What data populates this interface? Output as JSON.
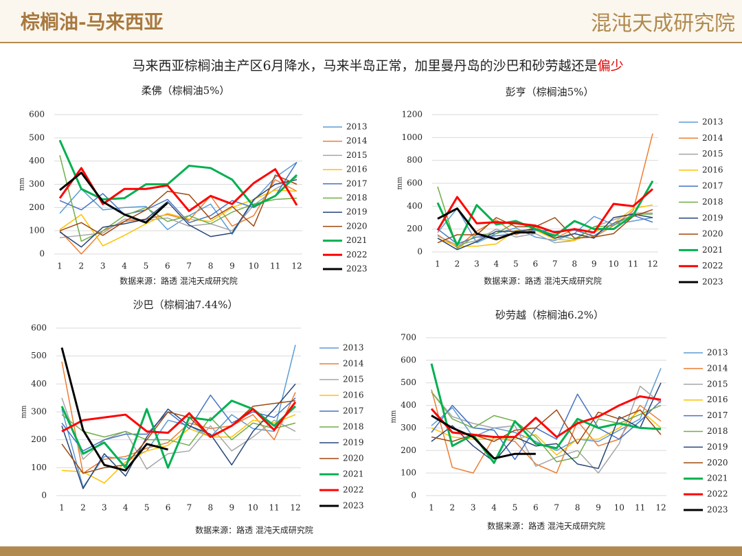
{
  "header": {
    "title": "棕榈油-马来西亚",
    "logo": "混沌天成研究院",
    "subtitle": "马来西亚棕榈油主产区6月降水，马来半岛正常，加里曼丹岛的沙巴和砂劳越还是",
    "subtitle_highlight": "偏少"
  },
  "chart_data": [
    {
      "type": "line",
      "title": "柔佛（棕榈油5%）",
      "ylabel": "mm",
      "source": "数据来源：路透 混沌天成研究院",
      "categories": [
        1,
        2,
        3,
        4,
        5,
        6,
        7,
        8,
        9,
        10,
        11,
        12
      ],
      "ylim": [
        0,
        600
      ],
      "yticks": [
        0,
        100,
        200,
        300,
        400,
        500,
        600
      ],
      "grid": true,
      "series": [
        {
          "name": "2013",
          "color": "#5b9bd5",
          "linewidth": 1.5,
          "values": [
            175,
            280,
            190,
            200,
            205,
            105,
            165,
            215,
            85,
            230,
            330,
            395
          ]
        },
        {
          "name": "2014",
          "color": "#ed7d31",
          "linewidth": 1.5,
          "values": [
            100,
            0,
            100,
            140,
            150,
            170,
            145,
            250,
            120,
            165,
            320,
            270
          ]
        },
        {
          "name": "2015",
          "color": "#a5a5a5",
          "linewidth": 1.5,
          "values": [
            70,
            80,
            90,
            150,
            145,
            155,
            120,
            130,
            100,
            210,
            280,
            330
          ]
        },
        {
          "name": "2016",
          "color": "#ffc000",
          "linewidth": 1.5,
          "values": [
            105,
            170,
            35,
            80,
            130,
            175,
            150,
            140,
            200,
            235,
            275,
            270
          ]
        },
        {
          "name": "2017",
          "color": "#4472c4",
          "linewidth": 1.5,
          "values": [
            230,
            190,
            260,
            170,
            190,
            235,
            135,
            165,
            230,
            200,
            250,
            395
          ]
        },
        {
          "name": "2018",
          "color": "#70ad47",
          "linewidth": 1.5,
          "values": [
            425,
            55,
            100,
            165,
            200,
            140,
            165,
            130,
            180,
            215,
            235,
            240
          ]
        },
        {
          "name": "2019",
          "color": "#264478",
          "linewidth": 1.5,
          "values": [
            95,
            30,
            115,
            130,
            150,
            225,
            125,
            75,
            90,
            235,
            300,
            320
          ]
        },
        {
          "name": "2020",
          "color": "#9e480e",
          "linewidth": 1.5,
          "values": [
            100,
            135,
            80,
            140,
            190,
            270,
            255,
            150,
            205,
            120,
            340,
            300
          ]
        },
        {
          "name": "2021",
          "color": "#00b050",
          "linewidth": 3,
          "values": [
            490,
            280,
            235,
            240,
            300,
            300,
            380,
            370,
            320,
            205,
            250,
            340
          ]
        },
        {
          "name": "2022",
          "color": "#ff0000",
          "linewidth": 3,
          "values": [
            240,
            370,
            215,
            280,
            280,
            295,
            185,
            250,
            215,
            305,
            365,
            210
          ]
        },
        {
          "name": "2023",
          "color": "#000000",
          "linewidth": 3,
          "values": [
            275,
            350,
            225,
            170,
            135,
            220,
            null,
            null,
            null,
            null,
            null,
            null
          ]
        }
      ]
    },
    {
      "type": "line",
      "title": "彭亨（棕榈油5%）",
      "ylabel": "mm",
      "source": "数据来源：路透 混沌天成研究院",
      "categories": [
        1,
        2,
        3,
        4,
        5,
        6,
        7,
        8,
        9,
        10,
        11,
        12
      ],
      "ylim": [
        0,
        1200
      ],
      "yticks": [
        0,
        200,
        400,
        600,
        800,
        1000,
        1200
      ],
      "grid": true,
      "series": [
        {
          "name": "2013",
          "color": "#5b9bd5",
          "linewidth": 1.5,
          "values": [
            170,
            380,
            80,
            160,
            210,
            130,
            100,
            160,
            310,
            240,
            270,
            300
          ]
        },
        {
          "name": "2014",
          "color": "#ed7d31",
          "linewidth": 1.5,
          "values": [
            150,
            40,
            180,
            280,
            150,
            220,
            120,
            200,
            130,
            230,
            360,
            1035
          ]
        },
        {
          "name": "2015",
          "color": "#a5a5a5",
          "linewidth": 1.5,
          "values": [
            140,
            60,
            100,
            200,
            130,
            160,
            80,
            100,
            220,
            280,
            340,
            340
          ]
        },
        {
          "name": "2016",
          "color": "#ffc000",
          "linewidth": 1.5,
          "values": [
            120,
            50,
            50,
            70,
            190,
            190,
            110,
            100,
            170,
            250,
            380,
            410
          ]
        },
        {
          "name": "2017",
          "color": "#4472c4",
          "linewidth": 1.5,
          "values": [
            200,
            70,
            130,
            140,
            160,
            190,
            180,
            190,
            140,
            250,
            320,
            260
          ]
        },
        {
          "name": "2018",
          "color": "#70ad47",
          "linewidth": 1.5,
          "values": [
            570,
            30,
            150,
            160,
            260,
            200,
            150,
            110,
            220,
            230,
            330,
            330
          ]
        },
        {
          "name": "2019",
          "color": "#264478",
          "linewidth": 1.5,
          "values": [
            120,
            20,
            90,
            180,
            180,
            200,
            120,
            160,
            120,
            300,
            330,
            300
          ]
        },
        {
          "name": "2020",
          "color": "#9e480e",
          "linewidth": 1.5,
          "values": [
            80,
            150,
            150,
            300,
            220,
            220,
            300,
            120,
            130,
            160,
            310,
            370
          ]
        },
        {
          "name": "2021",
          "color": "#00b050",
          "linewidth": 3,
          "values": [
            430,
            60,
            410,
            240,
            270,
            200,
            140,
            270,
            200,
            200,
            320,
            620
          ]
        },
        {
          "name": "2022",
          "color": "#ff0000",
          "linewidth": 3,
          "values": [
            190,
            480,
            250,
            260,
            250,
            230,
            170,
            200,
            170,
            420,
            400,
            550
          ]
        },
        {
          "name": "2023",
          "color": "#000000",
          "linewidth": 3,
          "values": [
            290,
            380,
            160,
            110,
            170,
            170,
            null,
            null,
            null,
            null,
            null,
            null
          ]
        }
      ]
    },
    {
      "type": "line",
      "title": "沙巴（棕榈油7.44%）",
      "ylabel": "mm",
      "source": "数据来源：路透 混沌天成研究院",
      "categories": [
        1,
        2,
        3,
        4,
        5,
        6,
        7,
        8,
        9,
        10,
        11,
        12
      ],
      "ylim": [
        0,
        600
      ],
      "yticks": [
        0,
        100,
        200,
        300,
        400,
        500,
        600
      ],
      "grid": true,
      "series": [
        {
          "name": "2013",
          "color": "#5b9bd5",
          "linewidth": 1.5,
          "values": [
            310,
            30,
            140,
            130,
            160,
            270,
            250,
            210,
            290,
            240,
            230,
            540
          ]
        },
        {
          "name": "2014",
          "color": "#ed7d31",
          "linewidth": 1.5,
          "values": [
            480,
            80,
            130,
            140,
            170,
            190,
            260,
            240,
            250,
            290,
            200,
            370
          ]
        },
        {
          "name": "2015",
          "color": "#a5a5a5",
          "linewidth": 1.5,
          "values": [
            350,
            130,
            200,
            230,
            95,
            150,
            160,
            250,
            160,
            210,
            270,
            230
          ]
        },
        {
          "name": "2016",
          "color": "#ffc000",
          "linewidth": 1.5,
          "values": [
            90,
            85,
            45,
            120,
            160,
            180,
            240,
            210,
            210,
            270,
            260,
            290
          ]
        },
        {
          "name": "2017",
          "color": "#4472c4",
          "linewidth": 1.5,
          "values": [
            260,
            160,
            200,
            220,
            220,
            300,
            240,
            360,
            260,
            300,
            280,
            350
          ]
        },
        {
          "name": "2018",
          "color": "#70ad47",
          "linewidth": 1.5,
          "values": [
            290,
            230,
            210,
            230,
            200,
            200,
            180,
            280,
            200,
            260,
            240,
            260
          ]
        },
        {
          "name": "2019",
          "color": "#264478",
          "linewidth": 1.5,
          "values": [
            250,
            25,
            150,
            70,
            210,
            310,
            250,
            220,
            110,
            230,
            310,
            400
          ]
        },
        {
          "name": "2020",
          "color": "#9e480e",
          "linewidth": 1.5,
          "values": [
            185,
            80,
            100,
            110,
            200,
            300,
            280,
            210,
            250,
            320,
            330,
            340
          ]
        },
        {
          "name": "2021",
          "color": "#00b050",
          "linewidth": 3,
          "values": [
            320,
            150,
            190,
            100,
            310,
            100,
            280,
            270,
            340,
            310,
            250,
            320
          ]
        },
        {
          "name": "2022",
          "color": "#ff0000",
          "linewidth": 3,
          "values": [
            230,
            270,
            280,
            290,
            230,
            225,
            295,
            210,
            250,
            310,
            235,
            335
          ]
        },
        {
          "name": "2023",
          "color": "#000000",
          "linewidth": 3,
          "values": [
            530,
            235,
            110,
            90,
            185,
            165,
            null,
            null,
            null,
            null,
            null,
            null
          ]
        }
      ]
    },
    {
      "type": "line",
      "title": "砂劳越（棕榈油6.2%）",
      "ylabel": "mm",
      "source": "数据来源：路透 混沌天成研究院",
      "categories": [
        1,
        2,
        3,
        4,
        5,
        6,
        7,
        8,
        9,
        10,
        11,
        12
      ],
      "ylim": [
        0,
        700
      ],
      "yticks": [
        0,
        100,
        200,
        300,
        400,
        500,
        600,
        700
      ],
      "grid": true,
      "series": [
        {
          "name": "2013",
          "color": "#5b9bd5",
          "linewidth": 1.5,
          "values": [
            310,
            390,
            260,
            300,
            280,
            240,
            200,
            250,
            240,
            290,
            340,
            565
          ]
        },
        {
          "name": "2014",
          "color": "#ed7d31",
          "linewidth": 1.5,
          "values": [
            470,
            125,
            100,
            260,
            240,
            140,
            100,
            330,
            220,
            250,
            400,
            330
          ]
        },
        {
          "name": "2015",
          "color": "#a5a5a5",
          "linewidth": 1.5,
          "values": [
            460,
            350,
            320,
            300,
            310,
            130,
            170,
            200,
            100,
            230,
            485,
            410
          ]
        },
        {
          "name": "2016",
          "color": "#ffc000",
          "linewidth": 1.5,
          "values": [
            300,
            260,
            250,
            250,
            250,
            270,
            180,
            250,
            250,
            300,
            380,
            300
          ]
        },
        {
          "name": "2017",
          "color": "#4472c4",
          "linewidth": 1.5,
          "values": [
            280,
            400,
            300,
            290,
            160,
            300,
            250,
            450,
            300,
            250,
            330,
            420
          ]
        },
        {
          "name": "2018",
          "color": "#70ad47",
          "linewidth": 1.5,
          "values": [
            460,
            340,
            300,
            355,
            330,
            260,
            150,
            170,
            340,
            320,
            360,
            400
          ]
        },
        {
          "name": "2019",
          "color": "#264478",
          "linewidth": 1.5,
          "values": [
            240,
            310,
            220,
            150,
            260,
            220,
            230,
            140,
            120,
            350,
            300,
            500
          ]
        },
        {
          "name": "2020",
          "color": "#9e480e",
          "linewidth": 1.5,
          "values": [
            260,
            240,
            270,
            240,
            290,
            300,
            380,
            230,
            370,
            340,
            380,
            270
          ]
        },
        {
          "name": "2021",
          "color": "#00b050",
          "linewidth": 3,
          "values": [
            585,
            220,
            270,
            145,
            330,
            230,
            210,
            340,
            300,
            320,
            300,
            295
          ]
        },
        {
          "name": "2022",
          "color": "#ff0000",
          "linewidth": 3,
          "values": [
            385,
            280,
            270,
            260,
            260,
            345,
            260,
            320,
            350,
            400,
            440,
            425
          ]
        },
        {
          "name": "2023",
          "color": "#000000",
          "linewidth": 3,
          "values": [
            355,
            300,
            260,
            165,
            185,
            185,
            null,
            null,
            null,
            null,
            null,
            null
          ]
        }
      ]
    }
  ]
}
